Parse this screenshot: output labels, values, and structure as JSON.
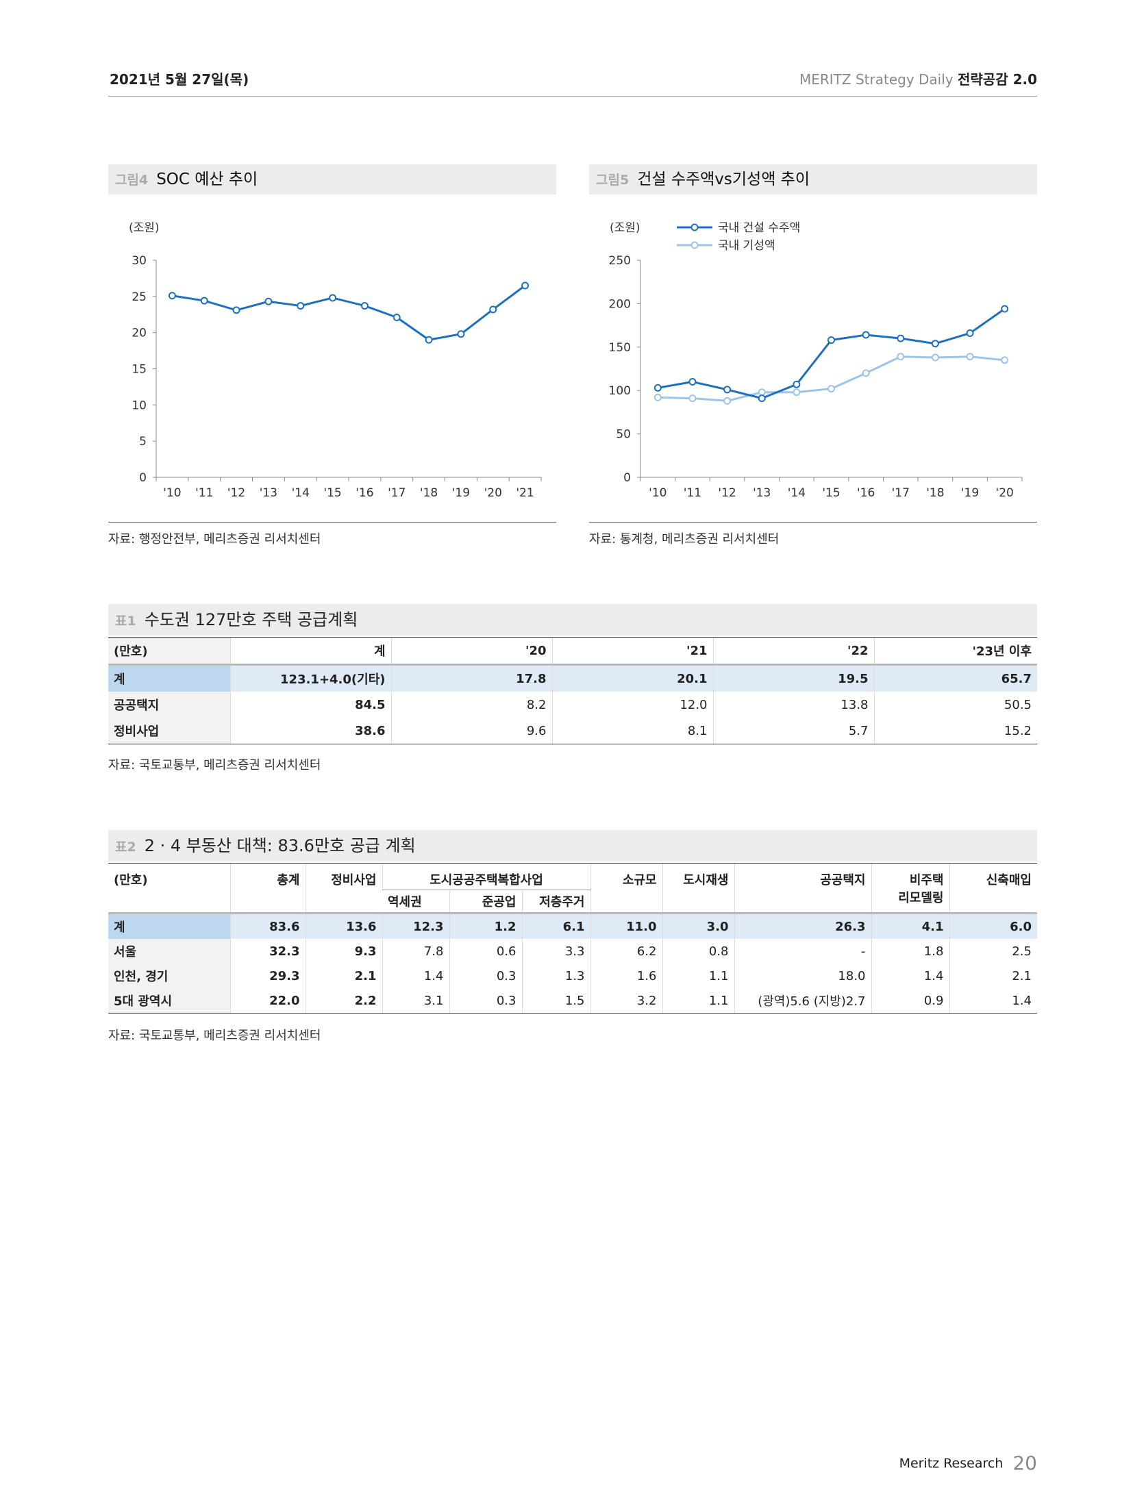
{
  "header": {
    "date": "2021년 5월 27일(목)",
    "series": "MERITZ Strategy Daily",
    "product": "전략공감 2.0"
  },
  "fig4": {
    "label": "그림4",
    "title": "SOC 예산 추이",
    "unit": "(조원)",
    "source": "자료: 행정안전부, 메리츠증권 리서치센터",
    "chart_data": {
      "type": "line",
      "x": [
        "'10",
        "'11",
        "'12",
        "'13",
        "'14",
        "'15",
        "'16",
        "'17",
        "'18",
        "'19",
        "'20",
        "'21"
      ],
      "series": [
        {
          "values": [
            25.1,
            24.4,
            23.1,
            24.3,
            23.7,
            24.8,
            23.7,
            22.1,
            19.0,
            19.8,
            23.2,
            26.5
          ]
        }
      ],
      "ylim": [
        0,
        30
      ],
      "yticks": [
        0,
        5,
        10,
        15,
        20,
        25,
        30
      ],
      "color": "#1f6fbf"
    }
  },
  "fig5": {
    "label": "그림5",
    "title": "건설 수주액vs기성액 추이",
    "unit": "(조원)",
    "source": "자료: 통계청, 메리츠증권 리서치센터",
    "chart_data": {
      "type": "line",
      "x": [
        "'10",
        "'11",
        "'12",
        "'13",
        "'14",
        "'15",
        "'16",
        "'17",
        "'18",
        "'19",
        "'20"
      ],
      "series": [
        {
          "name": "국내 건설 수주액",
          "color": "#1f6fbf",
          "values": [
            103,
            110,
            101,
            91,
            107,
            158,
            164,
            160,
            154,
            166,
            194
          ]
        },
        {
          "name": "국내 기성액",
          "color": "#9dc3e6",
          "values": [
            92,
            91,
            88,
            98,
            98,
            102,
            120,
            139,
            138,
            139,
            135
          ]
        }
      ],
      "ylim": [
        0,
        250
      ],
      "yticks": [
        0,
        50,
        100,
        150,
        200,
        250
      ],
      "legend": "top-left"
    }
  },
  "table1": {
    "label": "표1",
    "title": "수도권 127만호 주택 공급계획",
    "headers": [
      "(만호)",
      "계",
      "'20",
      "'21",
      "'22",
      "'23년 이후"
    ],
    "rows": [
      [
        "계",
        "123.1+4.0(기타)",
        "17.8",
        "20.1",
        "19.5",
        "65.7"
      ],
      [
        "공공택지",
        "84.5",
        "8.2",
        "12.0",
        "13.8",
        "50.5"
      ],
      [
        "정비사업",
        "38.6",
        "9.6",
        "8.1",
        "5.7",
        "15.2"
      ]
    ],
    "source": "자료: 국토교통부, 메리츠증권 리서치센터"
  },
  "table2": {
    "label": "표2",
    "title": "2 · 4 부동산 대책: 83.6만호 공급 계획",
    "unit": "(만호)",
    "headers": {
      "total": "총계",
      "redevelopment": "정비사업",
      "urban_group": "도시공공주택복합사업",
      "sub": [
        "역세권",
        "준공업",
        "저층주거"
      ],
      "small": "소규모",
      "regen": "도시재생",
      "public_land": "공공택지",
      "non_housing_1": "비주택",
      "non_housing_2": "리모델링",
      "new_purchase": "신축매입"
    },
    "rows": [
      [
        "계",
        "83.6",
        "13.6",
        "12.3",
        "1.2",
        "6.1",
        "11.0",
        "3.0",
        "26.3",
        "4.1",
        "6.0"
      ],
      [
        "서울",
        "32.3",
        "9.3",
        "7.8",
        "0.6",
        "3.3",
        "6.2",
        "0.8",
        "-",
        "1.8",
        "2.5"
      ],
      [
        "인천, 경기",
        "29.3",
        "2.1",
        "1.4",
        "0.3",
        "1.3",
        "1.6",
        "1.1",
        "18.0",
        "1.4",
        "2.1"
      ],
      [
        "5대 광역시",
        "22.0",
        "2.2",
        "3.1",
        "0.3",
        "1.5",
        "3.2",
        "1.1",
        "(광역)5.6 (지방)2.7",
        "0.9",
        "1.4"
      ]
    ],
    "source": "자료: 국토교통부, 메리츠증권 리서치센터"
  },
  "footer": {
    "brand": "Meritz Research",
    "page": "20"
  }
}
